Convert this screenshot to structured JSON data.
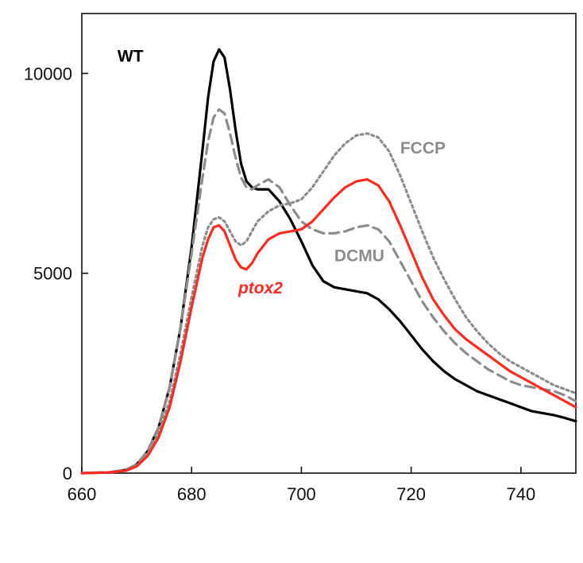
{
  "chart_data": {
    "type": "line",
    "title": "",
    "xlabel": "",
    "ylabel": "",
    "xlim": [
      660,
      750
    ],
    "ylim": [
      0,
      11500
    ],
    "x_ticks": [
      660,
      680,
      700,
      720,
      740
    ],
    "y_ticks": [
      0,
      5000,
      10000
    ],
    "grid": false,
    "legend": "none",
    "annotations": [
      {
        "id": "wt",
        "text": "WT",
        "color": "#000000",
        "italic": false,
        "x": 666.5,
        "y": 10300
      },
      {
        "id": "fccp",
        "text": "FCCP",
        "color": "#8c8c8c",
        "italic": false,
        "x": 718,
        "y": 8000
      },
      {
        "id": "dcmu",
        "text": "DCMU",
        "color": "#8c8c8c",
        "italic": false,
        "x": 706,
        "y": 5300
      },
      {
        "id": "ptox2",
        "text": "ptox2",
        "color": "#ff2a1f",
        "italic": true,
        "x": 688.5,
        "y": 4500
      }
    ],
    "series": [
      {
        "id": "wt",
        "color": "#000000",
        "dash": "",
        "width": 3.2,
        "x": [
          660,
          665,
          668,
          670,
          672,
          674,
          676,
          678,
          680,
          682,
          683,
          684,
          685,
          686,
          687,
          688,
          689,
          690,
          691,
          692,
          694,
          696,
          698,
          700,
          702,
          704,
          706,
          708,
          710,
          712,
          714,
          716,
          718,
          720,
          722,
          724,
          726,
          728,
          730,
          732,
          734,
          736,
          738,
          740,
          742,
          744,
          746,
          748,
          750
        ],
        "values": [
          0,
          20,
          80,
          220,
          550,
          1150,
          2150,
          3650,
          5650,
          8100,
          9400,
          10300,
          10600,
          10400,
          9600,
          8600,
          7750,
          7300,
          7150,
          7100,
          7100,
          6800,
          6350,
          5800,
          5200,
          4800,
          4650,
          4600,
          4550,
          4500,
          4350,
          4100,
          3800,
          3450,
          3100,
          2800,
          2550,
          2350,
          2200,
          2050,
          1950,
          1850,
          1750,
          1650,
          1550,
          1500,
          1450,
          1380,
          1300
        ]
      },
      {
        "id": "dcmu",
        "color": "#8c8c8c",
        "dash": "12 7",
        "width": 3.2,
        "x": [
          660,
          665,
          668,
          670,
          672,
          674,
          676,
          678,
          680,
          682,
          683,
          684,
          685,
          686,
          687,
          688,
          689,
          690,
          691,
          692,
          694,
          696,
          698,
          700,
          702,
          704,
          706,
          708,
          710,
          712,
          714,
          716,
          718,
          720,
          722,
          724,
          726,
          728,
          730,
          732,
          734,
          736,
          738,
          740,
          742,
          744,
          746,
          748,
          750
        ],
        "values": [
          0,
          20,
          80,
          220,
          550,
          1150,
          2150,
          3650,
          5500,
          7400,
          8300,
          8900,
          9100,
          9000,
          8500,
          7900,
          7400,
          7150,
          7100,
          7200,
          7350,
          7150,
          6700,
          6300,
          6100,
          6000,
          6000,
          6050,
          6150,
          6200,
          6100,
          5800,
          5300,
          4800,
          4300,
          3900,
          3550,
          3250,
          3000,
          2800,
          2600,
          2450,
          2300,
          2200,
          2150,
          2100,
          2050,
          1950,
          1800
        ]
      },
      {
        "id": "fccp",
        "color": "#8c8c8c",
        "dash": "3 4",
        "width": 3.2,
        "x": [
          660,
          665,
          668,
          670,
          672,
          674,
          676,
          678,
          680,
          682,
          683,
          684,
          685,
          686,
          687,
          688,
          689,
          690,
          691,
          692,
          694,
          696,
          698,
          700,
          702,
          704,
          706,
          708,
          710,
          712,
          714,
          716,
          718,
          720,
          722,
          724,
          726,
          728,
          730,
          732,
          734,
          736,
          738,
          740,
          742,
          744,
          746,
          748,
          750
        ],
        "values": [
          0,
          20,
          70,
          190,
          480,
          1000,
          1800,
          3000,
          4400,
          5700,
          6150,
          6350,
          6400,
          6300,
          6050,
          5800,
          5700,
          5800,
          6050,
          6300,
          6550,
          6700,
          6750,
          6850,
          7150,
          7550,
          7950,
          8250,
          8450,
          8500,
          8400,
          8050,
          7450,
          6750,
          6050,
          5400,
          4850,
          4350,
          3900,
          3550,
          3250,
          3000,
          2800,
          2650,
          2500,
          2350,
          2200,
          2100,
          2000
        ]
      },
      {
        "id": "ptox2",
        "color": "#ff2a1f",
        "dash": "",
        "width": 3.2,
        "x": [
          660,
          665,
          668,
          670,
          672,
          674,
          676,
          678,
          680,
          682,
          683,
          684,
          685,
          686,
          687,
          688,
          689,
          690,
          691,
          692,
          694,
          696,
          698,
          700,
          702,
          704,
          706,
          708,
          710,
          712,
          714,
          716,
          718,
          720,
          722,
          724,
          726,
          728,
          730,
          732,
          734,
          736,
          738,
          740,
          742,
          744,
          746,
          748,
          750
        ],
        "values": [
          0,
          15,
          60,
          170,
          430,
          900,
          1650,
          2800,
          4150,
          5400,
          5850,
          6150,
          6200,
          6050,
          5700,
          5350,
          5150,
          5100,
          5250,
          5500,
          5850,
          6000,
          6050,
          6100,
          6300,
          6600,
          6900,
          7150,
          7300,
          7350,
          7200,
          6800,
          6200,
          5550,
          4900,
          4350,
          3950,
          3600,
          3350,
          3150,
          2950,
          2750,
          2550,
          2400,
          2250,
          2100,
          1950,
          1800,
          1650
        ]
      }
    ]
  }
}
